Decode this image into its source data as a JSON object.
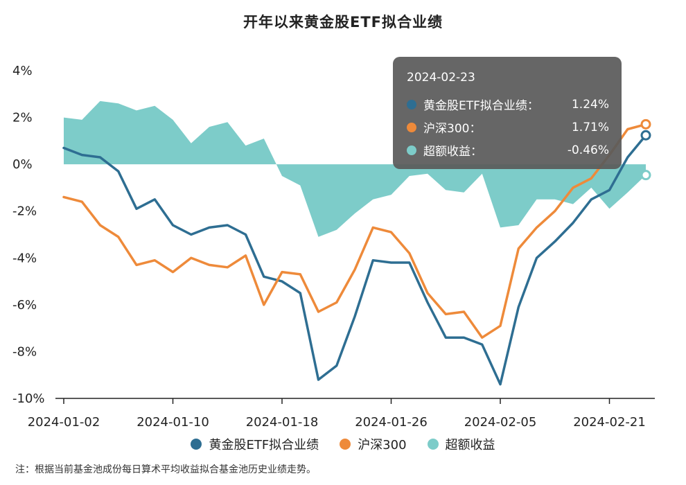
{
  "title": "开年以来黄金股ETF拟合业绩",
  "note": "注：根据当前基金池成份每日算术平均收益拟合基金池历史业绩走势。",
  "colors": {
    "gold": "#2e6e92",
    "csi": "#ee8a3a",
    "excess": "#7dccc9"
  },
  "tooltip": {
    "date": "2024-02-23",
    "rows": [
      {
        "label": "黄金股ETF拟合业绩：",
        "value": "1.24%"
      },
      {
        "label": "沪深300：",
        "value": "1.71%"
      },
      {
        "label": "超额收益：",
        "value": "-0.46%"
      }
    ]
  },
  "chart_data": {
    "type": "line",
    "title": "开年以来黄金股ETF拟合业绩",
    "ylim": [
      -10,
      4
    ],
    "yticks": [
      4,
      2,
      0,
      -2,
      -4,
      -6,
      -8,
      -10
    ],
    "ytick_labels": [
      "4%",
      "2%",
      "0%",
      "-2%",
      "-4%",
      "-6%",
      "-8%",
      "-10%"
    ],
    "xtick_labels": [
      "2024-01-02",
      "2024-01-10",
      "2024-01-18",
      "2024-01-26",
      "2024-02-05",
      "2024-02-21"
    ],
    "xtick_dates": [
      "2024-01-02",
      "2024-01-10",
      "2024-01-18",
      "2024-01-26",
      "2024-02-05",
      "2024-02-21"
    ],
    "dates": [
      "2024-01-02",
      "2024-01-03",
      "2024-01-04",
      "2024-01-05",
      "2024-01-08",
      "2024-01-09",
      "2024-01-10",
      "2024-01-11",
      "2024-01-12",
      "2024-01-15",
      "2024-01-16",
      "2024-01-17",
      "2024-01-18",
      "2024-01-19",
      "2024-01-22",
      "2024-01-23",
      "2024-01-24",
      "2024-01-25",
      "2024-01-26",
      "2024-01-29",
      "2024-01-30",
      "2024-01-31",
      "2024-02-01",
      "2024-02-02",
      "2024-02-05",
      "2024-02-06",
      "2024-02-07",
      "2024-02-08",
      "2024-02-19",
      "2024-02-20",
      "2024-02-21",
      "2024-02-22",
      "2024-02-23"
    ],
    "grid": false,
    "legend_position": "bottom",
    "series": [
      {
        "name": "黄金股ETF拟合业绩",
        "kind": "line",
        "values": [
          0.7,
          0.4,
          0.3,
          -0.3,
          -1.9,
          -1.5,
          -2.6,
          -3.0,
          -2.7,
          -2.6,
          -3.0,
          -4.8,
          -5.0,
          -5.5,
          -9.2,
          -8.6,
          -6.5,
          -4.1,
          -4.2,
          -4.2,
          -5.9,
          -7.4,
          -7.4,
          -7.7,
          -9.4,
          -6.1,
          -4.0,
          -3.3,
          -2.5,
          -1.5,
          -1.1,
          0.3,
          1.24
        ]
      },
      {
        "name": "沪深300",
        "kind": "line",
        "values": [
          -1.4,
          -1.6,
          -2.6,
          -3.1,
          -4.3,
          -4.1,
          -4.6,
          -4.0,
          -4.3,
          -4.4,
          -3.9,
          -6.0,
          -4.6,
          -4.7,
          -6.3,
          -5.9,
          -4.5,
          -2.7,
          -2.9,
          -3.8,
          -5.5,
          -6.4,
          -6.3,
          -7.4,
          -6.9,
          -3.6,
          -2.7,
          -2.0,
          -1.0,
          -0.6,
          0.4,
          1.5,
          1.71
        ]
      },
      {
        "name": "超额收益",
        "kind": "area",
        "values": [
          2.0,
          1.9,
          2.7,
          2.6,
          2.3,
          2.5,
          1.9,
          0.9,
          1.6,
          1.8,
          0.8,
          1.1,
          -0.5,
          -0.9,
          -3.1,
          -2.8,
          -2.1,
          -1.5,
          -1.3,
          -0.5,
          -0.4,
          -1.1,
          -1.2,
          -0.4,
          -2.7,
          -2.6,
          -1.5,
          -1.5,
          -1.7,
          -1.0,
          -1.9,
          -1.2,
          -0.46
        ]
      }
    ]
  }
}
